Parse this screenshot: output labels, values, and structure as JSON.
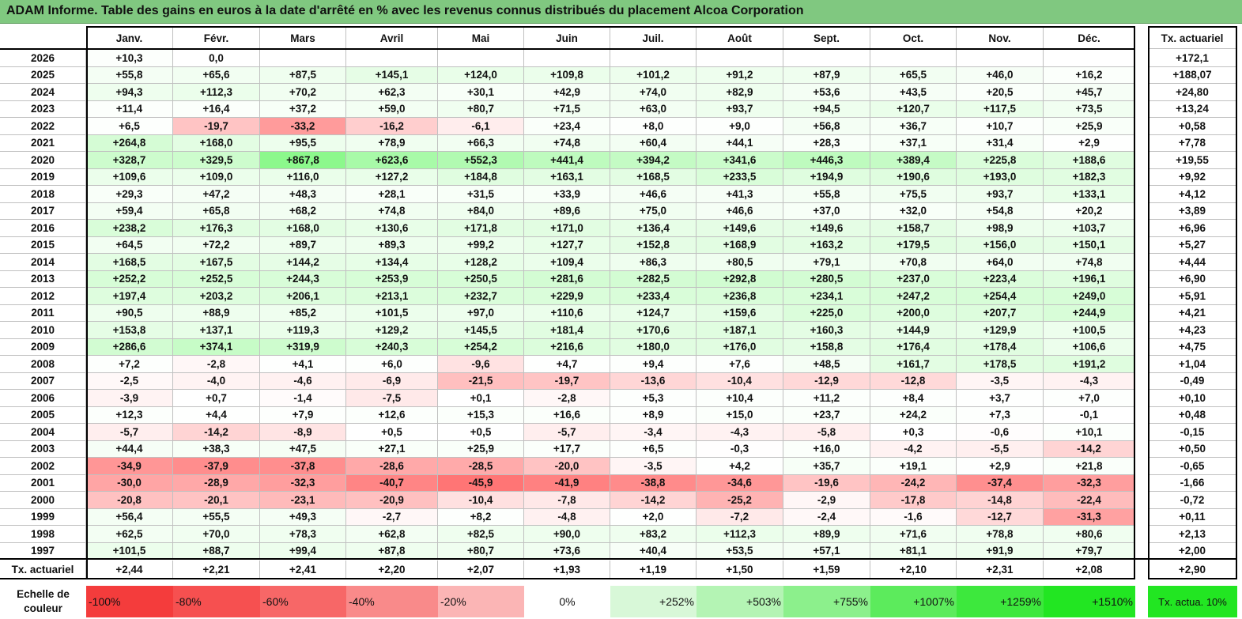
{
  "title": "ADAM Informe. Table des gains en euros à la date d'arrêté en % avec les revenus connus distribués du placement Alcoa Corporation",
  "months": [
    "Janv.",
    "Févr.",
    "Mars",
    "Avril",
    "Mai",
    "Juin",
    "Juil.",
    "Août",
    "Sept.",
    "Oct.",
    "Nov.",
    "Déc."
  ],
  "rate_header": "Tx. actuariel",
  "rows": [
    {
      "year": "2026",
      "values": [
        "+10,3",
        "0,0",
        "",
        "",
        "",
        "",
        "",
        "",
        "",
        "",
        "",
        ""
      ],
      "rate": "+172,1"
    },
    {
      "year": "2025",
      "values": [
        "+55,8",
        "+65,6",
        "+87,5",
        "+145,1",
        "+124,0",
        "+109,8",
        "+101,2",
        "+91,2",
        "+87,9",
        "+65,5",
        "+46,0",
        "+16,2"
      ],
      "rate": "+188,07"
    },
    {
      "year": "2024",
      "values": [
        "+94,3",
        "+112,3",
        "+70,2",
        "+62,3",
        "+30,1",
        "+42,9",
        "+74,0",
        "+82,9",
        "+53,6",
        "+43,5",
        "+20,5",
        "+45,7"
      ],
      "rate": "+24,80"
    },
    {
      "year": "2023",
      "values": [
        "+11,4",
        "+16,4",
        "+37,2",
        "+59,0",
        "+80,7",
        "+71,5",
        "+63,0",
        "+93,7",
        "+94,5",
        "+120,7",
        "+117,5",
        "+73,5"
      ],
      "rate": "+13,24"
    },
    {
      "year": "2022",
      "values": [
        "+6,5",
        "-19,7",
        "-33,2",
        "-16,2",
        "-6,1",
        "+23,4",
        "+8,0",
        "+9,0",
        "+56,8",
        "+36,7",
        "+10,7",
        "+25,9"
      ],
      "rate": "+0,58"
    },
    {
      "year": "2021",
      "values": [
        "+264,8",
        "+168,0",
        "+95,5",
        "+78,9",
        "+66,3",
        "+74,8",
        "+60,4",
        "+44,1",
        "+28,3",
        "+37,1",
        "+31,4",
        "+2,9"
      ],
      "rate": "+7,78"
    },
    {
      "year": "2020",
      "values": [
        "+328,7",
        "+329,5",
        "+867,8",
        "+623,6",
        "+552,3",
        "+441,4",
        "+394,2",
        "+341,6",
        "+446,3",
        "+389,4",
        "+225,8",
        "+188,6"
      ],
      "rate": "+19,55"
    },
    {
      "year": "2019",
      "values": [
        "+109,6",
        "+109,0",
        "+116,0",
        "+127,2",
        "+184,8",
        "+163,1",
        "+168,5",
        "+233,5",
        "+194,9",
        "+190,6",
        "+193,0",
        "+182,3"
      ],
      "rate": "+9,92"
    },
    {
      "year": "2018",
      "values": [
        "+29,3",
        "+47,2",
        "+48,3",
        "+28,1",
        "+31,5",
        "+33,9",
        "+46,6",
        "+41,3",
        "+55,8",
        "+75,5",
        "+93,7",
        "+133,1"
      ],
      "rate": "+4,12"
    },
    {
      "year": "2017",
      "values": [
        "+59,4",
        "+65,8",
        "+68,2",
        "+74,8",
        "+84,0",
        "+89,6",
        "+75,0",
        "+46,6",
        "+37,0",
        "+32,0",
        "+54,8",
        "+20,2"
      ],
      "rate": "+3,89"
    },
    {
      "year": "2016",
      "values": [
        "+238,2",
        "+176,3",
        "+168,0",
        "+130,6",
        "+171,8",
        "+171,0",
        "+136,4",
        "+149,6",
        "+149,6",
        "+158,7",
        "+98,9",
        "+103,7"
      ],
      "rate": "+6,96"
    },
    {
      "year": "2015",
      "values": [
        "+64,5",
        "+72,2",
        "+89,7",
        "+89,3",
        "+99,2",
        "+127,7",
        "+152,8",
        "+168,9",
        "+163,2",
        "+179,5",
        "+156,0",
        "+150,1"
      ],
      "rate": "+5,27"
    },
    {
      "year": "2014",
      "values": [
        "+168,5",
        "+167,5",
        "+144,2",
        "+134,4",
        "+128,2",
        "+109,4",
        "+86,3",
        "+80,5",
        "+79,1",
        "+70,8",
        "+64,0",
        "+74,8"
      ],
      "rate": "+4,44"
    },
    {
      "year": "2013",
      "values": [
        "+252,2",
        "+252,5",
        "+244,3",
        "+253,9",
        "+250,5",
        "+281,6",
        "+282,5",
        "+292,8",
        "+280,5",
        "+237,0",
        "+223,4",
        "+196,1"
      ],
      "rate": "+6,90"
    },
    {
      "year": "2012",
      "values": [
        "+197,4",
        "+203,2",
        "+206,1",
        "+213,1",
        "+232,7",
        "+229,9",
        "+233,4",
        "+236,8",
        "+234,1",
        "+247,2",
        "+254,4",
        "+249,0"
      ],
      "rate": "+5,91"
    },
    {
      "year": "2011",
      "values": [
        "+90,5",
        "+88,9",
        "+85,2",
        "+101,5",
        "+97,0",
        "+110,6",
        "+124,7",
        "+159,6",
        "+225,0",
        "+200,0",
        "+207,7",
        "+244,9"
      ],
      "rate": "+4,21"
    },
    {
      "year": "2010",
      "values": [
        "+153,8",
        "+137,1",
        "+119,3",
        "+129,2",
        "+145,5",
        "+181,4",
        "+170,6",
        "+187,1",
        "+160,3",
        "+144,9",
        "+129,9",
        "+100,5"
      ],
      "rate": "+4,23"
    },
    {
      "year": "2009",
      "values": [
        "+286,6",
        "+374,1",
        "+319,9",
        "+240,3",
        "+254,2",
        "+216,6",
        "+180,0",
        "+176,0",
        "+158,8",
        "+176,4",
        "+178,4",
        "+106,6"
      ],
      "rate": "+4,75"
    },
    {
      "year": "2008",
      "values": [
        "+7,2",
        "-2,8",
        "+4,1",
        "+6,0",
        "-9,6",
        "+4,7",
        "+9,4",
        "+7,6",
        "+48,5",
        "+161,7",
        "+178,5",
        "+191,2"
      ],
      "rate": "+1,04"
    },
    {
      "year": "2007",
      "values": [
        "-2,5",
        "-4,0",
        "-4,6",
        "-6,9",
        "-21,5",
        "-19,7",
        "-13,6",
        "-10,4",
        "-12,9",
        "-12,8",
        "-3,5",
        "-4,3"
      ],
      "rate": "-0,49"
    },
    {
      "year": "2006",
      "values": [
        "-3,9",
        "+0,7",
        "-1,4",
        "-7,5",
        "+0,1",
        "-2,8",
        "+5,3",
        "+10,4",
        "+11,2",
        "+8,4",
        "+3,7",
        "+7,0"
      ],
      "rate": "+0,10"
    },
    {
      "year": "2005",
      "values": [
        "+12,3",
        "+4,4",
        "+7,9",
        "+12,6",
        "+15,3",
        "+16,6",
        "+8,9",
        "+15,0",
        "+23,7",
        "+24,2",
        "+7,3",
        "-0,1"
      ],
      "rate": "+0,48"
    },
    {
      "year": "2004",
      "values": [
        "-5,7",
        "-14,2",
        "-8,9",
        "+0,5",
        "+0,5",
        "-5,7",
        "-3,4",
        "-4,3",
        "-5,8",
        "+0,3",
        "-0,6",
        "+10,1"
      ],
      "rate": "-0,15"
    },
    {
      "year": "2003",
      "values": [
        "+44,4",
        "+38,3",
        "+47,5",
        "+27,1",
        "+25,9",
        "+17,7",
        "+6,5",
        "-0,3",
        "+16,0",
        "-4,2",
        "-5,5",
        "-14,2"
      ],
      "rate": "+0,50"
    },
    {
      "year": "2002",
      "values": [
        "-34,9",
        "-37,9",
        "-37,8",
        "-28,6",
        "-28,5",
        "-20,0",
        "-3,5",
        "+4,2",
        "+35,7",
        "+19,1",
        "+2,9",
        "+21,8"
      ],
      "rate": "-0,65"
    },
    {
      "year": "2001",
      "values": [
        "-30,0",
        "-28,9",
        "-32,3",
        "-40,7",
        "-45,9",
        "-41,9",
        "-38,8",
        "-34,6",
        "-19,6",
        "-24,2",
        "-37,4",
        "-32,3"
      ],
      "rate": "-1,66"
    },
    {
      "year": "2000",
      "values": [
        "-20,8",
        "-20,1",
        "-23,1",
        "-20,9",
        "-10,4",
        "-7,8",
        "-14,2",
        "-25,2",
        "-2,9",
        "-17,8",
        "-14,8",
        "-22,4"
      ],
      "rate": "-0,72"
    },
    {
      "year": "1999",
      "values": [
        "+56,4",
        "+55,5",
        "+49,3",
        "-2,7",
        "+8,2",
        "-4,8",
        "+2,0",
        "-7,2",
        "-2,4",
        "-1,6",
        "-12,7",
        "-31,3"
      ],
      "rate": "+0,11"
    },
    {
      "year": "1998",
      "values": [
        "+62,5",
        "+70,0",
        "+78,3",
        "+62,8",
        "+82,5",
        "+90,0",
        "+83,2",
        "+112,3",
        "+89,9",
        "+71,6",
        "+78,8",
        "+80,6"
      ],
      "rate": "+2,13"
    },
    {
      "year": "1997",
      "values": [
        "+101,5",
        "+88,7",
        "+99,4",
        "+87,8",
        "+80,7",
        "+73,6",
        "+40,4",
        "+53,5",
        "+57,1",
        "+81,1",
        "+91,9",
        "+79,7"
      ],
      "rate": "+2,00"
    }
  ],
  "summary_row": {
    "label": "Tx. actuariel",
    "values": [
      "+2,44",
      "+2,21",
      "+2,41",
      "+2,20",
      "+2,07",
      "+1,93",
      "+1,19",
      "+1,50",
      "+1,59",
      "+2,10",
      "+2,31",
      "+2,08"
    ],
    "rate": "+2,90"
  },
  "legend": {
    "label": "Echelle de couleur",
    "steps": [
      {
        "text": "-100%",
        "color": "#f43c3c"
      },
      {
        "text": "-80%",
        "color": "#f65050"
      },
      {
        "text": "-60%",
        "color": "#f76767"
      },
      {
        "text": "-40%",
        "color": "#f98a8a"
      },
      {
        "text": "-20%",
        "color": "#fbb5b5"
      },
      {
        "text": "0%",
        "color": "#ffffff"
      },
      {
        "text": "+252%",
        "color": "#d8f8d8"
      },
      {
        "text": "+503%",
        "color": "#b4f4b4"
      },
      {
        "text": "+755%",
        "color": "#8cf08c"
      },
      {
        "text": "+1007%",
        "color": "#5ceb5c"
      },
      {
        "text": "+1259%",
        "color": "#3de83d"
      },
      {
        "text": "+1510%",
        "color": "#22e622"
      }
    ],
    "rate_label": "Tx. actua. 10%",
    "rate_color": "#22e622"
  },
  "colors": {
    "title_bg": "#80c880",
    "grid_line": "#c0c0c0",
    "border": "#000000"
  }
}
